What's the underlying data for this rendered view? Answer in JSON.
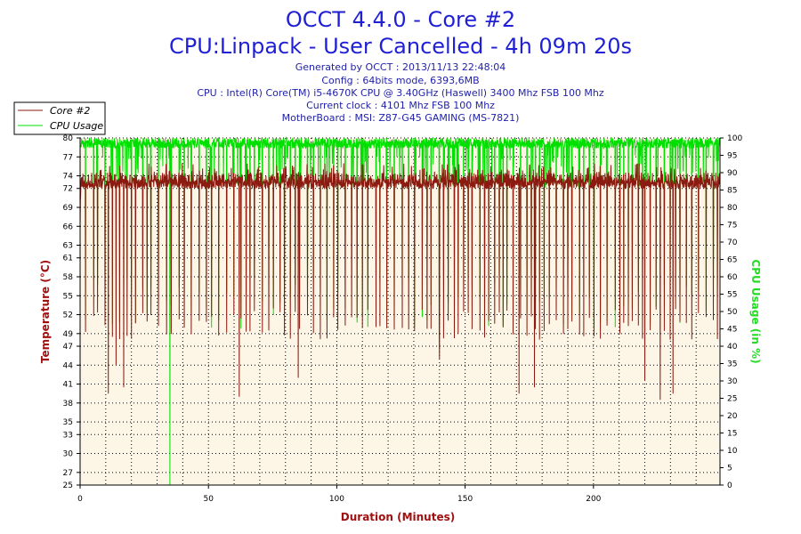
{
  "chart_data": {
    "type": "line",
    "title": "OCCT 4.4.0 - Core #2",
    "subtitle": "CPU:Linpack - User Cancelled - 4h 09m 20s",
    "info_lines": [
      "Generated by OCCT : 2013/11/13 22:48:04",
      "Config : 64bits mode, 6393,6MB",
      "CPU : Intel(R) Core(TM) i5-4670K CPU @ 3.40GHz (Haswell) 3400 Mhz FSB 100 Mhz",
      "Current clock : 4101 Mhz FSB 100 Mhz",
      "MotherBoard : MSI: Z87-G45 GAMING (MS-7821)"
    ],
    "xlabel": "Duration (Minutes)",
    "ylabel_left": "Temperature (°C)",
    "ylabel_right": "CPU Usage (in %)",
    "xlim": [
      0,
      249.3
    ],
    "ylim_left": [
      25,
      80
    ],
    "ylim_right": [
      0,
      100
    ],
    "x_ticks": [
      0,
      50,
      100,
      150,
      200
    ],
    "y_ticks_left": [
      25,
      27,
      30,
      33,
      35,
      38,
      41,
      44,
      47,
      49,
      52,
      55,
      58,
      61,
      63,
      66,
      69,
      72,
      74,
      77,
      80
    ],
    "y_ticks_right": [
      0,
      5,
      10,
      15,
      20,
      25,
      30,
      35,
      40,
      45,
      50,
      55,
      60,
      65,
      70,
      75,
      80,
      85,
      90,
      95,
      100
    ],
    "legend": [
      "Core #2",
      "CPU Usage"
    ],
    "grid": true,
    "legend_position": "top-left",
    "series": [
      {
        "name": "Core #2",
        "axis": "left",
        "color": "#8b1a10",
        "baseline": [
          72,
          74,
          76
        ],
        "dip_spacing_minutes": 2.3,
        "dip_range": [
          48,
          53
        ],
        "deep_dips": [
          {
            "x": 11,
            "y": 39.5
          },
          {
            "x": 14,
            "y": 44
          },
          {
            "x": 17,
            "y": 40.5
          },
          {
            "x": 62,
            "y": 39
          },
          {
            "x": 85,
            "y": 42
          },
          {
            "x": 140,
            "y": 45
          },
          {
            "x": 171,
            "y": 39.5
          },
          {
            "x": 177,
            "y": 40.5
          },
          {
            "x": 220,
            "y": 41.5
          },
          {
            "x": 226,
            "y": 38.5
          },
          {
            "x": 231,
            "y": 39.5
          }
        ]
      },
      {
        "name": "CPU Usage",
        "axis": "right",
        "color": "#00e000",
        "baseline": [
          97,
          100
        ],
        "dip_range": [
          45,
          60
        ],
        "drop_to_zero_at": 35
      }
    ]
  },
  "colors": {
    "plot_background": "#fdf5e6",
    "title_color": "#1f1fd6",
    "temp_color": "#8b1a10",
    "usage_color": "#00e000"
  }
}
